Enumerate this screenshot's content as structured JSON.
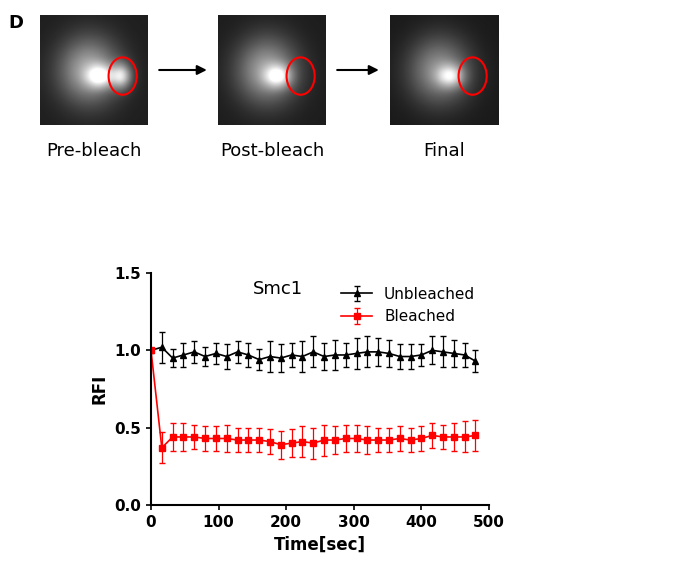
{
  "panel_label": "D",
  "images": [
    {
      "label": "Pre-bleach"
    },
    {
      "label": "Post-bleach"
    },
    {
      "label": "Final"
    }
  ],
  "chart_data": {
    "type": "line",
    "title": "Smc1",
    "x_label": "Time[sec]",
    "y_label": "RFI",
    "x": [
      0,
      16,
      32,
      48,
      64,
      80,
      96,
      112,
      128,
      144,
      160,
      176,
      192,
      208,
      224,
      240,
      256,
      272,
      288,
      304,
      320,
      336,
      352,
      368,
      384,
      400,
      416,
      432,
      448,
      464,
      480
    ],
    "series": [
      {
        "name": "Unbleached",
        "color": "#000000",
        "marker": "triangle",
        "line_style": "solid",
        "values": [
          1.0,
          1.02,
          0.95,
          0.97,
          0.99,
          0.96,
          0.98,
          0.96,
          0.99,
          0.97,
          0.94,
          0.96,
          0.95,
          0.97,
          0.96,
          0.99,
          0.96,
          0.97,
          0.97,
          0.98,
          0.99,
          0.99,
          0.98,
          0.96,
          0.96,
          0.97,
          1.0,
          0.99,
          0.98,
          0.97,
          0.93
        ],
        "errors": [
          0.0,
          0.1,
          0.06,
          0.08,
          0.07,
          0.06,
          0.07,
          0.08,
          0.07,
          0.08,
          0.07,
          0.1,
          0.09,
          0.08,
          0.1,
          0.1,
          0.09,
          0.1,
          0.08,
          0.1,
          0.1,
          0.09,
          0.09,
          0.08,
          0.08,
          0.07,
          0.09,
          0.1,
          0.09,
          0.08,
          0.07
        ]
      },
      {
        "name": "Bleached",
        "color": "#ff0000",
        "marker": "square",
        "line_style": "solid",
        "values": [
          1.0,
          0.37,
          0.44,
          0.44,
          0.44,
          0.43,
          0.43,
          0.43,
          0.42,
          0.42,
          0.42,
          0.41,
          0.39,
          0.4,
          0.41,
          0.4,
          0.42,
          0.42,
          0.43,
          0.43,
          0.42,
          0.42,
          0.42,
          0.43,
          0.42,
          0.43,
          0.45,
          0.44,
          0.44,
          0.44,
          0.45
        ],
        "errors": [
          0.0,
          0.1,
          0.09,
          0.09,
          0.08,
          0.08,
          0.08,
          0.09,
          0.08,
          0.08,
          0.08,
          0.08,
          0.09,
          0.09,
          0.1,
          0.1,
          0.1,
          0.09,
          0.09,
          0.09,
          0.09,
          0.08,
          0.08,
          0.08,
          0.08,
          0.08,
          0.08,
          0.08,
          0.09,
          0.1,
          0.1
        ]
      }
    ],
    "xlim": [
      0,
      500
    ],
    "xticks": [
      0,
      100,
      200,
      300,
      400,
      500
    ],
    "ylim": [
      0,
      1.5
    ],
    "yticks": [
      {
        "value": 0,
        "label": "0.0"
      },
      {
        "value": 0.5,
        "label": "0.5"
      },
      {
        "value": 1.0,
        "label": "1.0"
      },
      {
        "value": 1.5,
        "label": "1.5"
      }
    ],
    "legend": "upper right"
  }
}
